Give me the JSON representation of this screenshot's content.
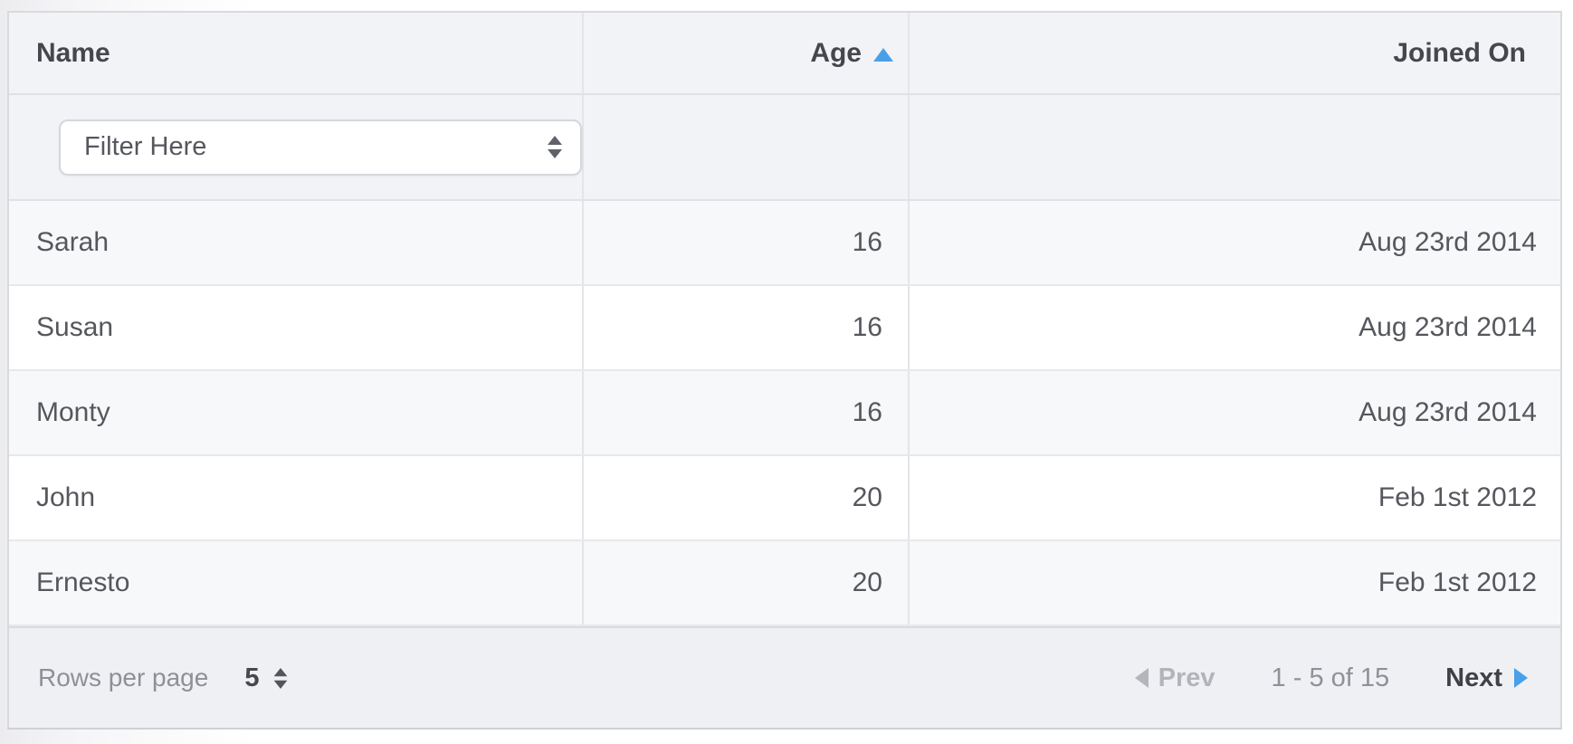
{
  "table": {
    "columns": [
      {
        "label": "Name",
        "sorted": "none"
      },
      {
        "label": "Age",
        "sorted": "ascending"
      },
      {
        "label": "Joined On",
        "sorted": "none"
      }
    ],
    "filter": {
      "selected_value": "Filter Here"
    },
    "rows": [
      {
        "name": "Sarah",
        "age": "16",
        "joined": "Aug 23rd 2014"
      },
      {
        "name": "Susan",
        "age": "16",
        "joined": "Aug 23rd 2014"
      },
      {
        "name": "Monty",
        "age": "16",
        "joined": "Aug 23rd 2014"
      },
      {
        "name": "John",
        "age": "20",
        "joined": "Feb 1st 2012"
      },
      {
        "name": "Ernesto",
        "age": "20",
        "joined": "Feb 1st 2012"
      }
    ]
  },
  "footer": {
    "rows_per_page_label": "Rows per page",
    "rows_per_page_value": "5",
    "prev_label": "Prev",
    "range_label": "1 - 5 of 15",
    "next_label": "Next"
  },
  "icons": {
    "sort_ascending": "triangle-up",
    "select_stepper": "up-down-arrows",
    "rows_per_page_stepper": "up-down-arrows",
    "prev": "triangle-left",
    "next": "triangle-right"
  },
  "colors": {
    "accent_blue": "#4aa0e8",
    "header_bg": "#f2f3f6",
    "footer_bg": "#eff0f3",
    "striped_row_bg": "#f7f8f9",
    "border": "#d8dade",
    "header_text": "#45474d",
    "cell_text": "#55575d",
    "muted_text": "#8f9198",
    "disabled_text": "#b2b4ba"
  }
}
